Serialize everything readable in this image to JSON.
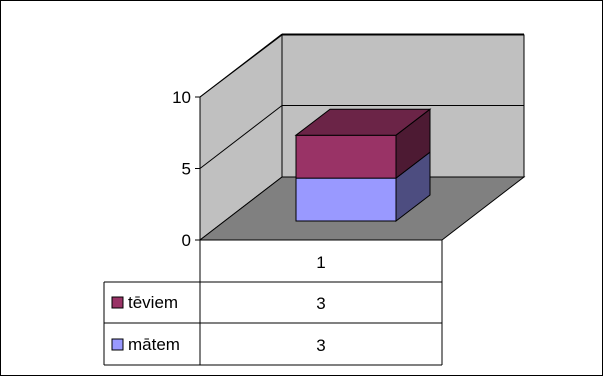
{
  "chart_data": {
    "type": "bar",
    "stacked": true,
    "three_d": true,
    "categories": [
      "1"
    ],
    "series": [
      {
        "name": "mātem",
        "values": [
          3
        ],
        "color": "#9999ff",
        "legend_key": "square"
      },
      {
        "name": "tēviem",
        "values": [
          3
        ],
        "color": "#993366",
        "legend_key": "square"
      }
    ],
    "ylim": [
      0,
      10
    ],
    "yticks": [
      0,
      5,
      10
    ],
    "y_tick_labels": [
      "0",
      "5",
      "10"
    ],
    "grid": true,
    "legend": "data-table-left",
    "data_table": true,
    "colors": {
      "walls": "#c0c0c0",
      "floor": "#808080",
      "border": "#000000",
      "background": "#ffffff"
    }
  }
}
